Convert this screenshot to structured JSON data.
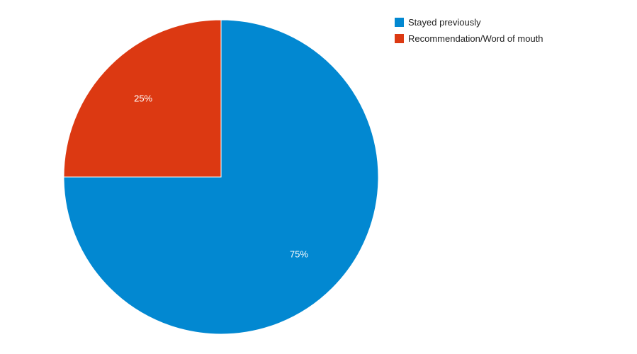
{
  "chart_data": {
    "type": "pie",
    "categories": [
      "Stayed previously",
      "Recommendation/Word of mouth"
    ],
    "values": [
      75,
      25
    ],
    "labels": [
      "75%",
      "25%"
    ],
    "colors": [
      "#0288d1",
      "#dc3912"
    ],
    "legend_position": "right",
    "start_angle_deg": 0,
    "direction": "clockwise"
  },
  "legend": {
    "items": [
      {
        "label": "Stayed previously",
        "color": "#0288d1"
      },
      {
        "label": "Recommendation/Word of mouth",
        "color": "#dc3912"
      }
    ]
  }
}
